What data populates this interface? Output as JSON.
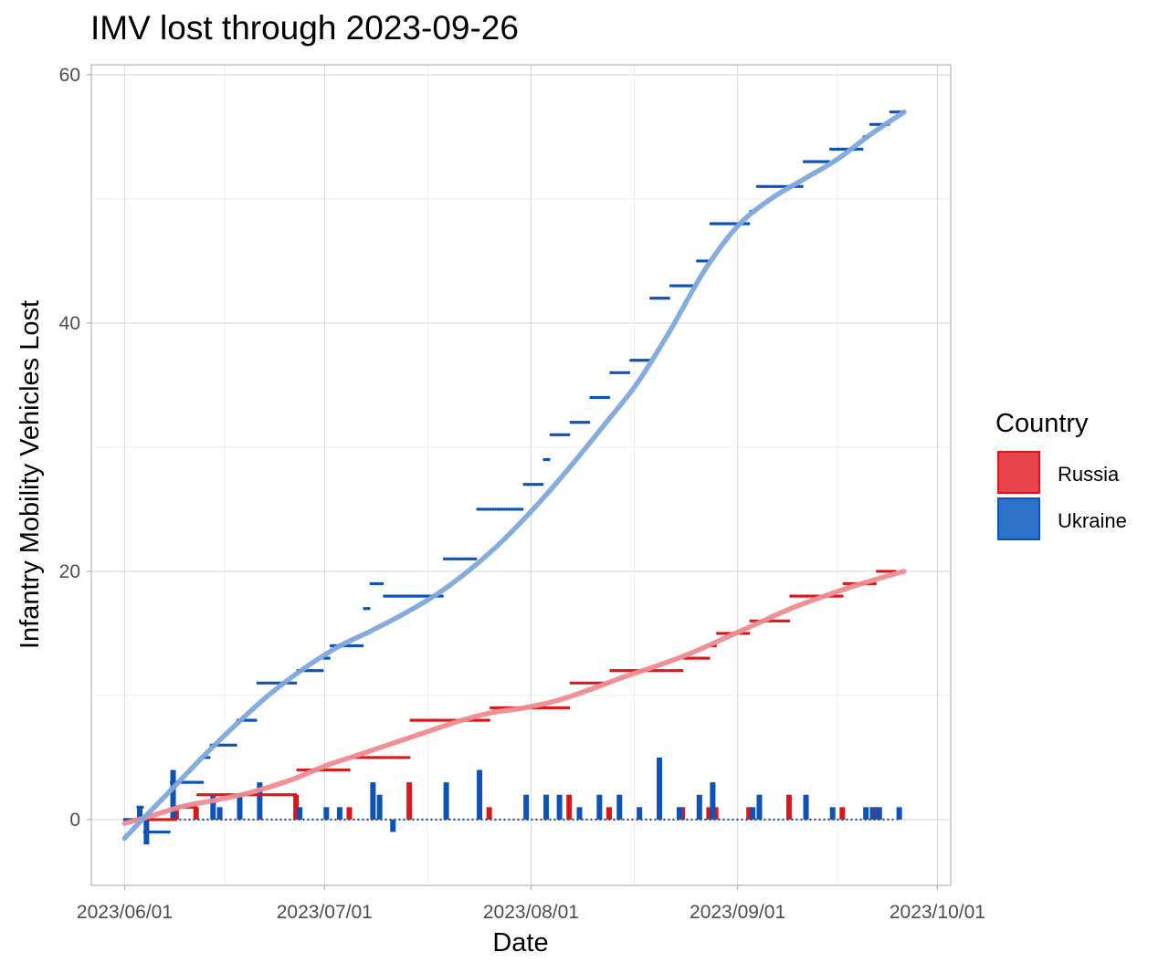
{
  "chart_data": {
    "type": "line",
    "title": "IMV lost through 2023-09-26",
    "xlabel": "Date",
    "ylabel": "Infantry Mobility Vehicles Lost",
    "x_range": [
      "2023-05-27",
      "2023-10-03"
    ],
    "ylim": [
      -5.3,
      60.8
    ],
    "x_ticks": [
      "2023-06-01",
      "2023-07-01",
      "2023-08-01",
      "2023-09-01",
      "2023-10-01"
    ],
    "x_tick_labels": [
      "2023/06/01",
      "2023/07/01",
      "2023/08/01",
      "2023/09/01",
      "2023/10/01"
    ],
    "y_ticks": [
      0,
      20,
      40,
      60
    ],
    "y_tick_labels": [
      "0",
      "20",
      "40",
      "60"
    ],
    "grid": true,
    "legend": {
      "title": "Country",
      "placement": "right",
      "entries": [
        "Russia",
        "Ukraine"
      ]
    },
    "colors": {
      "Russia": "#e8424b",
      "Russia_mark": "#d7191c",
      "Russia_trend": "#ee8b90",
      "Ukraine": "#2b72c9",
      "Ukraine_mark": "#0d52b4",
      "Ukraine_trend": "#7fa8dc"
    },
    "series": [
      {
        "name": "Russia",
        "cumulative": [
          [
            "2023-06-01",
            0
          ],
          [
            "2023-06-05",
            0
          ],
          [
            "2023-06-09",
            1
          ],
          [
            "2023-06-12",
            2
          ],
          [
            "2023-06-21",
            2
          ],
          [
            "2023-06-27",
            4
          ],
          [
            "2023-07-02",
            4
          ],
          [
            "2023-07-05",
            5
          ],
          [
            "2023-07-12",
            5
          ],
          [
            "2023-07-14",
            8
          ],
          [
            "2023-07-25",
            8
          ],
          [
            "2023-07-26",
            9
          ],
          [
            "2023-08-05",
            9
          ],
          [
            "2023-08-07",
            11
          ],
          [
            "2023-08-12",
            11
          ],
          [
            "2023-08-13",
            12
          ],
          [
            "2023-08-23",
            12
          ],
          [
            "2023-08-24",
            13
          ],
          [
            "2023-08-27",
            13
          ],
          [
            "2023-08-28",
            14
          ],
          [
            "2023-08-29",
            15
          ],
          [
            "2023-09-01",
            15
          ],
          [
            "2023-09-03",
            16
          ],
          [
            "2023-09-08",
            16
          ],
          [
            "2023-09-09",
            18
          ],
          [
            "2023-09-16",
            18
          ],
          [
            "2023-09-17",
            19
          ],
          [
            "2023-09-21",
            19
          ],
          [
            "2023-09-22",
            20
          ],
          [
            "2023-09-24",
            20
          ]
        ],
        "daily": [
          [
            "2023-06-09",
            1
          ],
          [
            "2023-06-12",
            1
          ],
          [
            "2023-06-27",
            2
          ],
          [
            "2023-07-05",
            1
          ],
          [
            "2023-07-14",
            3
          ],
          [
            "2023-07-26",
            1
          ],
          [
            "2023-08-07",
            2
          ],
          [
            "2023-08-13",
            1
          ],
          [
            "2023-08-24",
            1
          ],
          [
            "2023-08-28",
            1
          ],
          [
            "2023-08-29",
            1
          ],
          [
            "2023-09-03",
            1
          ],
          [
            "2023-09-09",
            2
          ],
          [
            "2023-09-17",
            1
          ],
          [
            "2023-09-22",
            1
          ]
        ],
        "trend": [
          [
            "2023-06-01",
            -0.3
          ],
          [
            "2023-06-05",
            0.3
          ],
          [
            "2023-06-10",
            1.1
          ],
          [
            "2023-06-15",
            1.6
          ],
          [
            "2023-06-20",
            2.2
          ],
          [
            "2023-06-26",
            3.2
          ],
          [
            "2023-07-01",
            4.3
          ],
          [
            "2023-07-06",
            5.2
          ],
          [
            "2023-07-11",
            6.1
          ],
          [
            "2023-07-16",
            7.0
          ],
          [
            "2023-07-21",
            7.9
          ],
          [
            "2023-07-26",
            8.6
          ],
          [
            "2023-07-31",
            9.0
          ],
          [
            "2023-08-05",
            9.6
          ],
          [
            "2023-08-10",
            10.5
          ],
          [
            "2023-08-15",
            11.5
          ],
          [
            "2023-08-20",
            12.4
          ],
          [
            "2023-08-25",
            13.4
          ],
          [
            "2023-08-30",
            14.6
          ],
          [
            "2023-09-04",
            15.8
          ],
          [
            "2023-09-09",
            17.0
          ],
          [
            "2023-09-14",
            18.0
          ],
          [
            "2023-09-19",
            18.9
          ],
          [
            "2023-09-24",
            19.7
          ],
          [
            "2023-09-26",
            20.0
          ]
        ]
      },
      {
        "name": "Ukraine",
        "cumulative": [
          [
            "2023-06-01",
            0
          ],
          [
            "2023-06-03",
            1
          ],
          [
            "2023-06-04",
            -1
          ],
          [
            "2023-06-07",
            -1
          ],
          [
            "2023-06-08",
            3
          ],
          [
            "2023-06-12",
            3
          ],
          [
            "2023-06-13",
            5
          ],
          [
            "2023-06-14",
            6
          ],
          [
            "2023-06-16",
            6
          ],
          [
            "2023-06-18",
            8
          ],
          [
            "2023-06-19",
            8
          ],
          [
            "2023-06-21",
            11
          ],
          [
            "2023-06-26",
            11
          ],
          [
            "2023-06-27",
            12
          ],
          [
            "2023-06-30",
            12
          ],
          [
            "2023-07-01",
            13
          ],
          [
            "2023-07-02",
            14
          ],
          [
            "2023-07-06",
            14
          ],
          [
            "2023-07-07",
            17
          ],
          [
            "2023-07-08",
            19
          ],
          [
            "2023-07-09",
            19
          ],
          [
            "2023-07-10",
            18
          ],
          [
            "2023-07-18",
            18
          ],
          [
            "2023-07-19",
            21
          ],
          [
            "2023-07-23",
            21
          ],
          [
            "2023-07-24",
            25
          ],
          [
            "2023-07-30",
            25
          ],
          [
            "2023-07-31",
            27
          ],
          [
            "2023-08-02",
            27
          ],
          [
            "2023-08-03",
            29
          ],
          [
            "2023-08-04",
            31
          ],
          [
            "2023-08-06",
            31
          ],
          [
            "2023-08-07",
            32
          ],
          [
            "2023-08-09",
            32
          ],
          [
            "2023-08-10",
            34
          ],
          [
            "2023-08-12",
            34
          ],
          [
            "2023-08-13",
            36
          ],
          [
            "2023-08-15",
            36
          ],
          [
            "2023-08-16",
            37
          ],
          [
            "2023-08-18",
            37
          ],
          [
            "2023-08-19",
            42
          ],
          [
            "2023-08-21",
            42
          ],
          [
            "2023-08-22",
            43
          ],
          [
            "2023-08-25",
            43
          ],
          [
            "2023-08-26",
            45
          ],
          [
            "2023-08-27",
            45
          ],
          [
            "2023-08-28",
            48
          ],
          [
            "2023-09-02",
            48
          ],
          [
            "2023-09-03",
            49
          ],
          [
            "2023-09-04",
            51
          ],
          [
            "2023-09-10",
            51
          ],
          [
            "2023-09-11",
            53
          ],
          [
            "2023-09-14",
            53
          ],
          [
            "2023-09-15",
            54
          ],
          [
            "2023-09-19",
            54
          ],
          [
            "2023-09-20",
            55
          ],
          [
            "2023-09-21",
            56
          ],
          [
            "2023-09-23",
            56
          ],
          [
            "2023-09-24",
            57
          ],
          [
            "2023-09-25",
            57
          ]
        ],
        "daily": [
          [
            "2023-06-03",
            1
          ],
          [
            "2023-06-04",
            -2
          ],
          [
            "2023-06-08",
            4
          ],
          [
            "2023-06-14",
            2
          ],
          [
            "2023-06-15",
            1
          ],
          [
            "2023-06-18",
            2
          ],
          [
            "2023-06-21",
            3
          ],
          [
            "2023-06-27",
            1
          ],
          [
            "2023-07-01",
            1
          ],
          [
            "2023-07-03",
            1
          ],
          [
            "2023-07-08",
            3
          ],
          [
            "2023-07-09",
            2
          ],
          [
            "2023-07-11",
            -1
          ],
          [
            "2023-07-19",
            3
          ],
          [
            "2023-07-24",
            4
          ],
          [
            "2023-07-31",
            2
          ],
          [
            "2023-08-03",
            2
          ],
          [
            "2023-08-05",
            2
          ],
          [
            "2023-08-08",
            1
          ],
          [
            "2023-08-11",
            2
          ],
          [
            "2023-08-14",
            2
          ],
          [
            "2023-08-17",
            1
          ],
          [
            "2023-08-20",
            5
          ],
          [
            "2023-08-23",
            1
          ],
          [
            "2023-08-26",
            2
          ],
          [
            "2023-08-28",
            3
          ],
          [
            "2023-09-03",
            1
          ],
          [
            "2023-09-04",
            2
          ],
          [
            "2023-09-11",
            2
          ],
          [
            "2023-09-15",
            1
          ],
          [
            "2023-09-20",
            1
          ],
          [
            "2023-09-21",
            1
          ],
          [
            "2023-09-22",
            1
          ],
          [
            "2023-09-25",
            1
          ]
        ],
        "trend": [
          [
            "2023-06-01",
            -1.5
          ],
          [
            "2023-06-04",
            0.2
          ],
          [
            "2023-06-08",
            2.4
          ],
          [
            "2023-06-13",
            5.2
          ],
          [
            "2023-06-18",
            7.8
          ],
          [
            "2023-06-23",
            10.2
          ],
          [
            "2023-06-28",
            12.2
          ],
          [
            "2023-07-03",
            13.9
          ],
          [
            "2023-07-08",
            15.2
          ],
          [
            "2023-07-13",
            16.6
          ],
          [
            "2023-07-18",
            18.2
          ],
          [
            "2023-07-23",
            20.2
          ],
          [
            "2023-07-28",
            22.6
          ],
          [
            "2023-08-02",
            25.4
          ],
          [
            "2023-08-07",
            28.5
          ],
          [
            "2023-08-12",
            31.8
          ],
          [
            "2023-08-17",
            35.2
          ],
          [
            "2023-08-22",
            39.5
          ],
          [
            "2023-08-27",
            44.2
          ],
          [
            "2023-09-01",
            47.8
          ],
          [
            "2023-09-06",
            50.0
          ],
          [
            "2023-09-11",
            51.6
          ],
          [
            "2023-09-16",
            53.2
          ],
          [
            "2023-09-21",
            55.2
          ],
          [
            "2023-09-26",
            57.0
          ]
        ]
      }
    ]
  }
}
